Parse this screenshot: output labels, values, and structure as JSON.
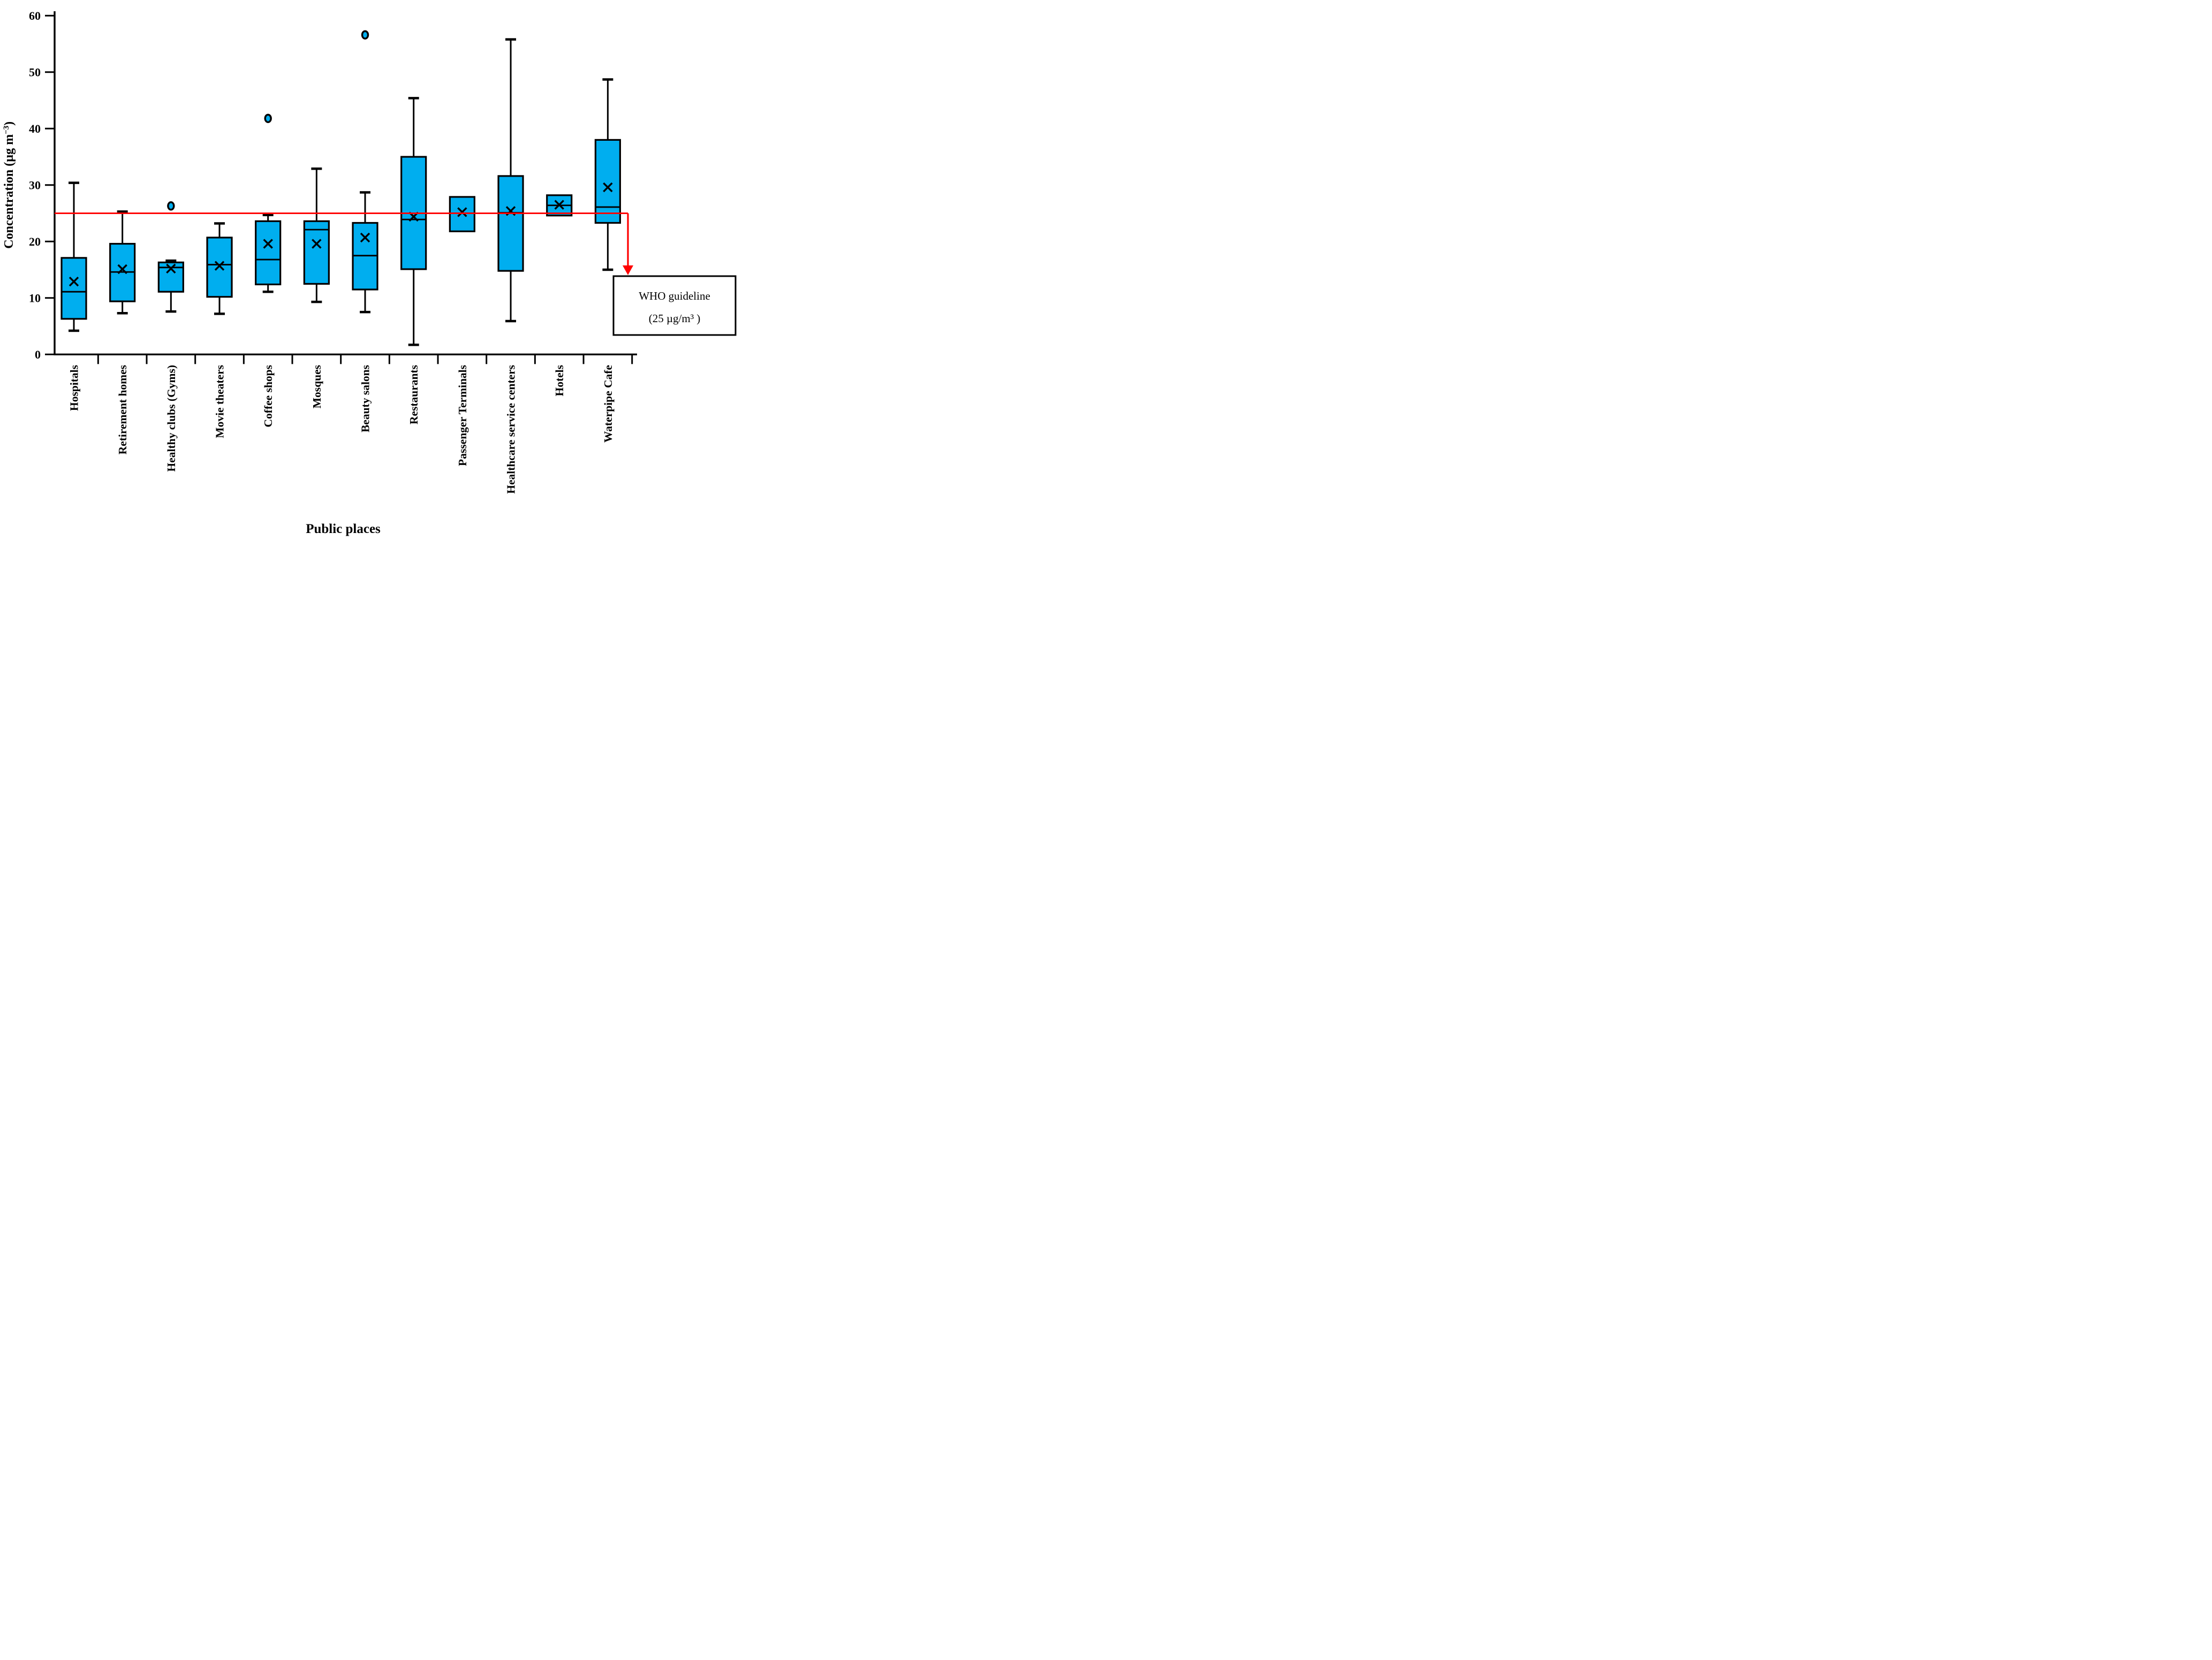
{
  "chart_data": {
    "type": "boxplot",
    "title": "",
    "xlabel": "Public places",
    "ylabel": {
      "full": "Concentration (µg m−3)",
      "main": "Concentration (µg m",
      "superscript": "−3",
      "close": ")"
    },
    "ylim": [
      0,
      60
    ],
    "yticks": [
      0,
      10,
      20,
      30,
      40,
      50,
      60
    ],
    "grid": false,
    "legend": "none",
    "colors": {
      "box_fill": "#00AEEF",
      "box_stroke": "#000000",
      "guideline_red": "#FF0000",
      "text": "#000000",
      "background": "#FFFFFF"
    },
    "guideline": {
      "value": 25,
      "label_line1": "WHO guideline",
      "label_line2": "(25 µg/m³ )"
    },
    "categories": [
      "Hospitals",
      "Retirement homes",
      "Healthy clubs (Gyms)",
      "Movie theaters",
      "Coffee shops",
      "Mosques",
      "Beauty salons",
      "Restaurants",
      "Passenger Terminals",
      "Healthcare service centers",
      "Hotels",
      "Waterpipe Cafe"
    ],
    "series": [
      {
        "name": "Hospitals",
        "low": 4.2,
        "q1": 6.3,
        "median": 11.1,
        "mean": 12.9,
        "q3": 17.1,
        "high": 30.4,
        "outliers": []
      },
      {
        "name": "Retirement homes",
        "low": 7.3,
        "q1": 9.4,
        "median": 14.6,
        "mean": 15.1,
        "q3": 19.6,
        "high": 25.3,
        "outliers": []
      },
      {
        "name": "Healthy clubs (Gyms)",
        "low": 7.6,
        "q1": 11.1,
        "median": 15.4,
        "mean": 15.2,
        "q3": 16.3,
        "high": 16.6,
        "outliers": [
          26.3
        ]
      },
      {
        "name": "Movie theaters",
        "low": 7.2,
        "q1": 10.2,
        "median": 15.9,
        "mean": 15.7,
        "q3": 20.7,
        "high": 23.2,
        "outliers": []
      },
      {
        "name": "Coffee shops",
        "low": 11.1,
        "q1": 12.4,
        "median": 16.8,
        "mean": 19.6,
        "q3": 23.6,
        "high": 24.7,
        "outliers": [
          41.8
        ]
      },
      {
        "name": "Mosques",
        "low": 9.3,
        "q1": 12.5,
        "median": 22.1,
        "mean": 19.6,
        "q3": 23.6,
        "high": 32.9,
        "outliers": []
      },
      {
        "name": "Beauty salons",
        "low": 7.5,
        "q1": 11.5,
        "median": 17.5,
        "mean": 20.7,
        "q3": 23.3,
        "high": 28.7,
        "outliers": [
          56.6
        ]
      },
      {
        "name": "Restaurants",
        "low": 1.7,
        "q1": 15.1,
        "median": 23.9,
        "mean": 24.4,
        "q3": 35.0,
        "high": 45.4,
        "outliers": []
      },
      {
        "name": "Passenger Terminals",
        "low": null,
        "q1": 21.8,
        "median": 25.0,
        "mean": 25.2,
        "q3": 27.9,
        "high": null,
        "outliers": []
      },
      {
        "name": "Healthcare service centers",
        "low": 5.9,
        "q1": 14.8,
        "median": 25.1,
        "mean": 25.4,
        "q3": 31.6,
        "high": 55.8,
        "outliers": []
      },
      {
        "name": "Hotels",
        "low": null,
        "q1": 24.6,
        "median": 26.4,
        "mean": 26.5,
        "q3": 28.2,
        "high": null,
        "outliers": []
      },
      {
        "name": "Waterpipe Cafe",
        "low": 15.0,
        "q1": 23.3,
        "median": 26.1,
        "mean": 29.6,
        "q3": 38.0,
        "high": 48.7,
        "outliers": []
      }
    ]
  }
}
